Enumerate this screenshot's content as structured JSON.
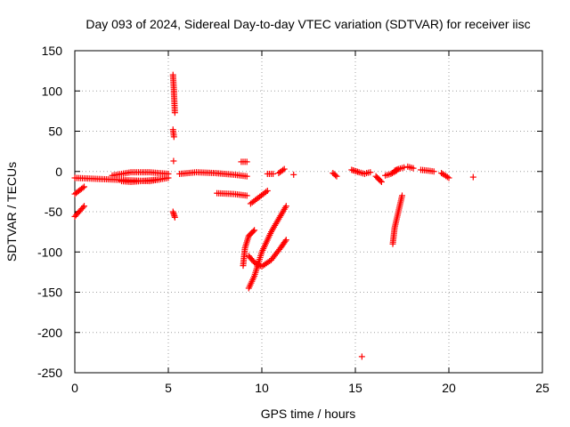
{
  "chart_data": {
    "type": "scatter",
    "title": "Day 093 of 2024, Sidereal Day-to-day VTEC variation (SDTVAR) for receiver iisc",
    "xlabel": "GPS time / hours",
    "ylabel": "SDTVAR / TECUs",
    "xlim": [
      0,
      25
    ],
    "ylim": [
      -250,
      150
    ],
    "xticks": [
      0,
      5,
      10,
      15,
      20,
      25
    ],
    "yticks": [
      -250,
      -200,
      -150,
      -100,
      -50,
      0,
      50,
      100,
      150
    ],
    "xtick_labels": [
      "0",
      "5",
      "10",
      "15",
      "20",
      "25"
    ],
    "ytick_labels": [
      "-250",
      "-200",
      "-150",
      "-100",
      "-50",
      "0",
      "50",
      "100",
      "150"
    ],
    "grid": true,
    "marker": "+",
    "color": "#ff0000",
    "segments": [
      {
        "x": [
          0.0,
          0.5
        ],
        "y": [
          -28,
          -19
        ]
      },
      {
        "x": [
          0.0,
          0.5
        ],
        "y": [
          -56,
          -43
        ]
      },
      {
        "x": [
          0.0,
          1.0,
          2.0,
          3.0,
          4.0,
          5.0
        ],
        "y": [
          -8,
          -9,
          -10,
          -11,
          -12,
          -8
        ]
      },
      {
        "x": [
          2.0,
          2.5,
          3.0,
          3.5,
          4.0,
          4.5,
          5.0
        ],
        "y": [
          -5,
          -3,
          -1,
          -1,
          -1,
          -2,
          -3
        ]
      },
      {
        "x": [
          2.5,
          3.0,
          3.5,
          4.0,
          4.5
        ],
        "y": [
          -12,
          -13,
          -12,
          -11,
          -10
        ]
      },
      {
        "x": [
          5.25,
          5.3
        ],
        "y": [
          120,
          100
        ]
      },
      {
        "x": [
          5.3,
          5.35
        ],
        "y": [
          98,
          73
        ]
      },
      {
        "x": [
          5.25,
          5.3
        ],
        "y": [
          52,
          43
        ]
      },
      {
        "x": [
          5.28
        ],
        "y": [
          13
        ]
      },
      {
        "x": [
          5.25,
          5.35
        ],
        "y": [
          -50,
          -57
        ]
      },
      {
        "x": [
          5.6,
          6.5,
          7.5,
          8.5,
          9.2
        ],
        "y": [
          -3,
          -1,
          -2,
          -4,
          -6
        ]
      },
      {
        "x": [
          7.6,
          8.5,
          9.2
        ],
        "y": [
          -27,
          -28,
          -30
        ]
      },
      {
        "x": [
          8.9,
          9.2
        ],
        "y": [
          12,
          12
        ]
      },
      {
        "x": [
          9.4,
          10.3
        ],
        "y": [
          -40,
          -24
        ]
      },
      {
        "x": [
          10.3,
          10.6
        ],
        "y": [
          -3,
          -3
        ]
      },
      {
        "x": [
          10.9,
          11.2
        ],
        "y": [
          -2,
          3
        ]
      },
      {
        "x": [
          11.7
        ],
        "y": [
          -4
        ]
      },
      {
        "x": [
          9.0,
          9.1,
          9.3,
          9.6
        ],
        "y": [
          -117,
          -95,
          -80,
          -73
        ]
      },
      {
        "x": [
          9.3,
          9.6,
          10.0,
          10.5,
          11.0,
          11.3
        ],
        "y": [
          -145,
          -130,
          -100,
          -75,
          -55,
          -43
        ]
      },
      {
        "x": [
          9.3,
          9.6,
          10.0,
          10.5,
          11.0,
          11.3
        ],
        "y": [
          -105,
          -113,
          -118,
          -110,
          -95,
          -85
        ]
      },
      {
        "x": [
          13.8,
          14.0
        ],
        "y": [
          -2,
          -6
        ]
      },
      {
        "x": [
          14.8,
          15.2,
          15.5
        ],
        "y": [
          2,
          -1,
          -3
        ]
      },
      {
        "x": [
          15.35
        ],
        "y": [
          -230
        ]
      },
      {
        "x": [
          15.6,
          15.8
        ],
        "y": [
          -2,
          -1
        ]
      },
      {
        "x": [
          16.1,
          16.4
        ],
        "y": [
          -6,
          -13
        ]
      },
      {
        "x": [
          16.6,
          16.9,
          17.2
        ],
        "y": [
          -5,
          -3,
          1
        ]
      },
      {
        "x": [
          17.0,
          17.1,
          17.3,
          17.5
        ],
        "y": [
          -90,
          -70,
          -50,
          -30
        ]
      },
      {
        "x": [
          17.1,
          17.3,
          17.6
        ],
        "y": [
          1,
          3,
          5
        ]
      },
      {
        "x": [
          17.8,
          18.1
        ],
        "y": [
          6,
          4
        ]
      },
      {
        "x": [
          18.5,
          18.9,
          19.2
        ],
        "y": [
          2,
          1,
          0
        ]
      },
      {
        "x": [
          19.6,
          20.0
        ],
        "y": [
          -2,
          -8
        ]
      },
      {
        "x": [
          21.3
        ],
        "y": [
          -7
        ]
      }
    ]
  }
}
